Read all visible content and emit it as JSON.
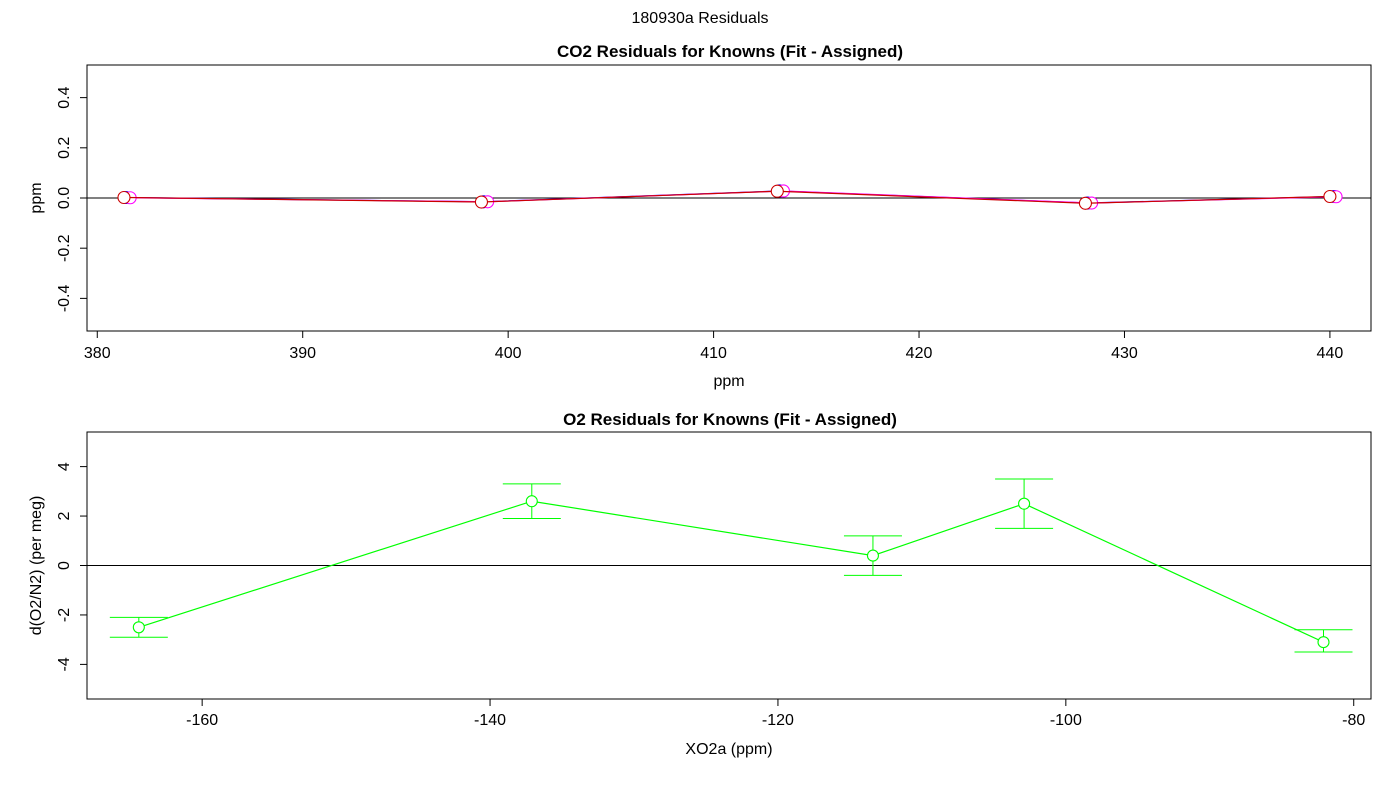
{
  "page_title": "180930a  Residuals",
  "chart_data": [
    {
      "type": "line",
      "title": "CO2 Residuals for Knowns (Fit - Assigned)",
      "xlabel": "ppm",
      "ylabel": "ppm",
      "xlim": [
        379.5,
        442.0
      ],
      "ylim": [
        -0.53,
        0.53
      ],
      "xticks": [
        380,
        390,
        400,
        410,
        420,
        430,
        440
      ],
      "yticks": [
        -0.4,
        -0.2,
        0.0,
        0.2,
        0.4
      ],
      "xtick_labels": [
        "380",
        "390",
        "400",
        "410",
        "420",
        "430",
        "440"
      ],
      "ytick_labels": [
        "-0.4",
        "-0.2",
        "0.0",
        "0.2",
        "0.4"
      ],
      "zero_line": true,
      "series": [
        {
          "color": "#0000ff",
          "x": [
            381.4,
            398.8,
            413.2,
            428.2,
            440.2
          ],
          "y": [
            0.002,
            -0.015,
            0.028,
            -0.02,
            0.006
          ]
        },
        {
          "color": "#ff00ff",
          "x": [
            381.6,
            399.0,
            413.4,
            428.4,
            440.3
          ],
          "y": [
            0.001,
            -0.015,
            0.028,
            -0.02,
            0.005
          ]
        },
        {
          "color": "#cc0000",
          "x": [
            381.3,
            398.7,
            413.1,
            428.1,
            440.0
          ],
          "y": [
            0.002,
            -0.016,
            0.027,
            -0.021,
            0.006
          ]
        }
      ]
    },
    {
      "type": "line",
      "title": "O2 Residuals for Knowns (Fit - Assigned)",
      "xlabel": "XO2a (ppm)",
      "ylabel": "d(O2/N2) (per meg)",
      "xlim": [
        -168.0,
        -78.8
      ],
      "ylim": [
        -5.4,
        5.4
      ],
      "xticks": [
        -160,
        -140,
        -120,
        -100,
        -80
      ],
      "yticks": [
        -4,
        -2,
        0,
        2,
        4
      ],
      "xtick_labels": [
        "-160",
        "-140",
        "-120",
        "-100",
        "-80"
      ],
      "ytick_labels": [
        "-4",
        "-2",
        "0",
        "2",
        "4"
      ],
      "zero_line": true,
      "series": [
        {
          "color": "#00ff00",
          "x": [
            -164.4,
            -137.1,
            -113.4,
            -102.9,
            -82.1
          ],
          "y": [
            -2.5,
            2.6,
            0.4,
            2.5,
            -3.1
          ],
          "err_low": [
            -2.9,
            1.9,
            -0.4,
            1.5,
            -3.5
          ],
          "err_high": [
            -2.1,
            3.3,
            1.2,
            3.5,
            -2.6
          ]
        }
      ]
    }
  ]
}
